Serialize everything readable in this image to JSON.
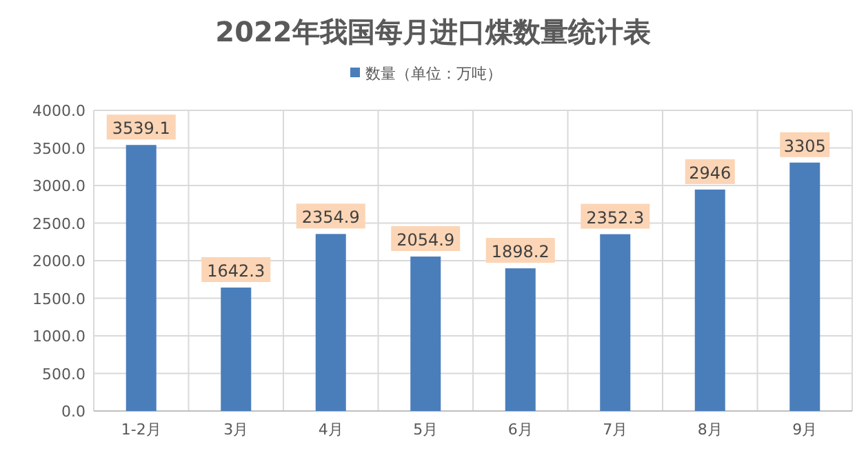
{
  "chart_data": {
    "type": "bar",
    "title": "2022年我国每月进口煤数量统计表",
    "categories": [
      "1-2月",
      "3月",
      "4月",
      "5月",
      "6月",
      "7月",
      "8月",
      "9月"
    ],
    "series": [
      {
        "name": "数量（单位：万吨）",
        "color": "#4a7ebb",
        "values": [
          3539.1,
          1642.3,
          2354.9,
          2054.9,
          1898.2,
          2352.3,
          2946,
          3305
        ]
      }
    ],
    "ylim": [
      0,
      4000
    ],
    "yticks": [
      {
        "value": 0,
        "label": "0.0"
      },
      {
        "value": 500,
        "label": "500.0"
      },
      {
        "value": 1000,
        "label": "1000.0"
      },
      {
        "value": 1500,
        "label": "1500.0"
      },
      {
        "value": 2000,
        "label": "2000.0"
      },
      {
        "value": 2500,
        "label": "2500.0"
      },
      {
        "value": 3000,
        "label": "3000.0"
      },
      {
        "value": 3500,
        "label": "3500.0"
      },
      {
        "value": 4000,
        "label": "4000.0"
      }
    ],
    "grid": true,
    "legend": "top",
    "data_labels": true
  }
}
